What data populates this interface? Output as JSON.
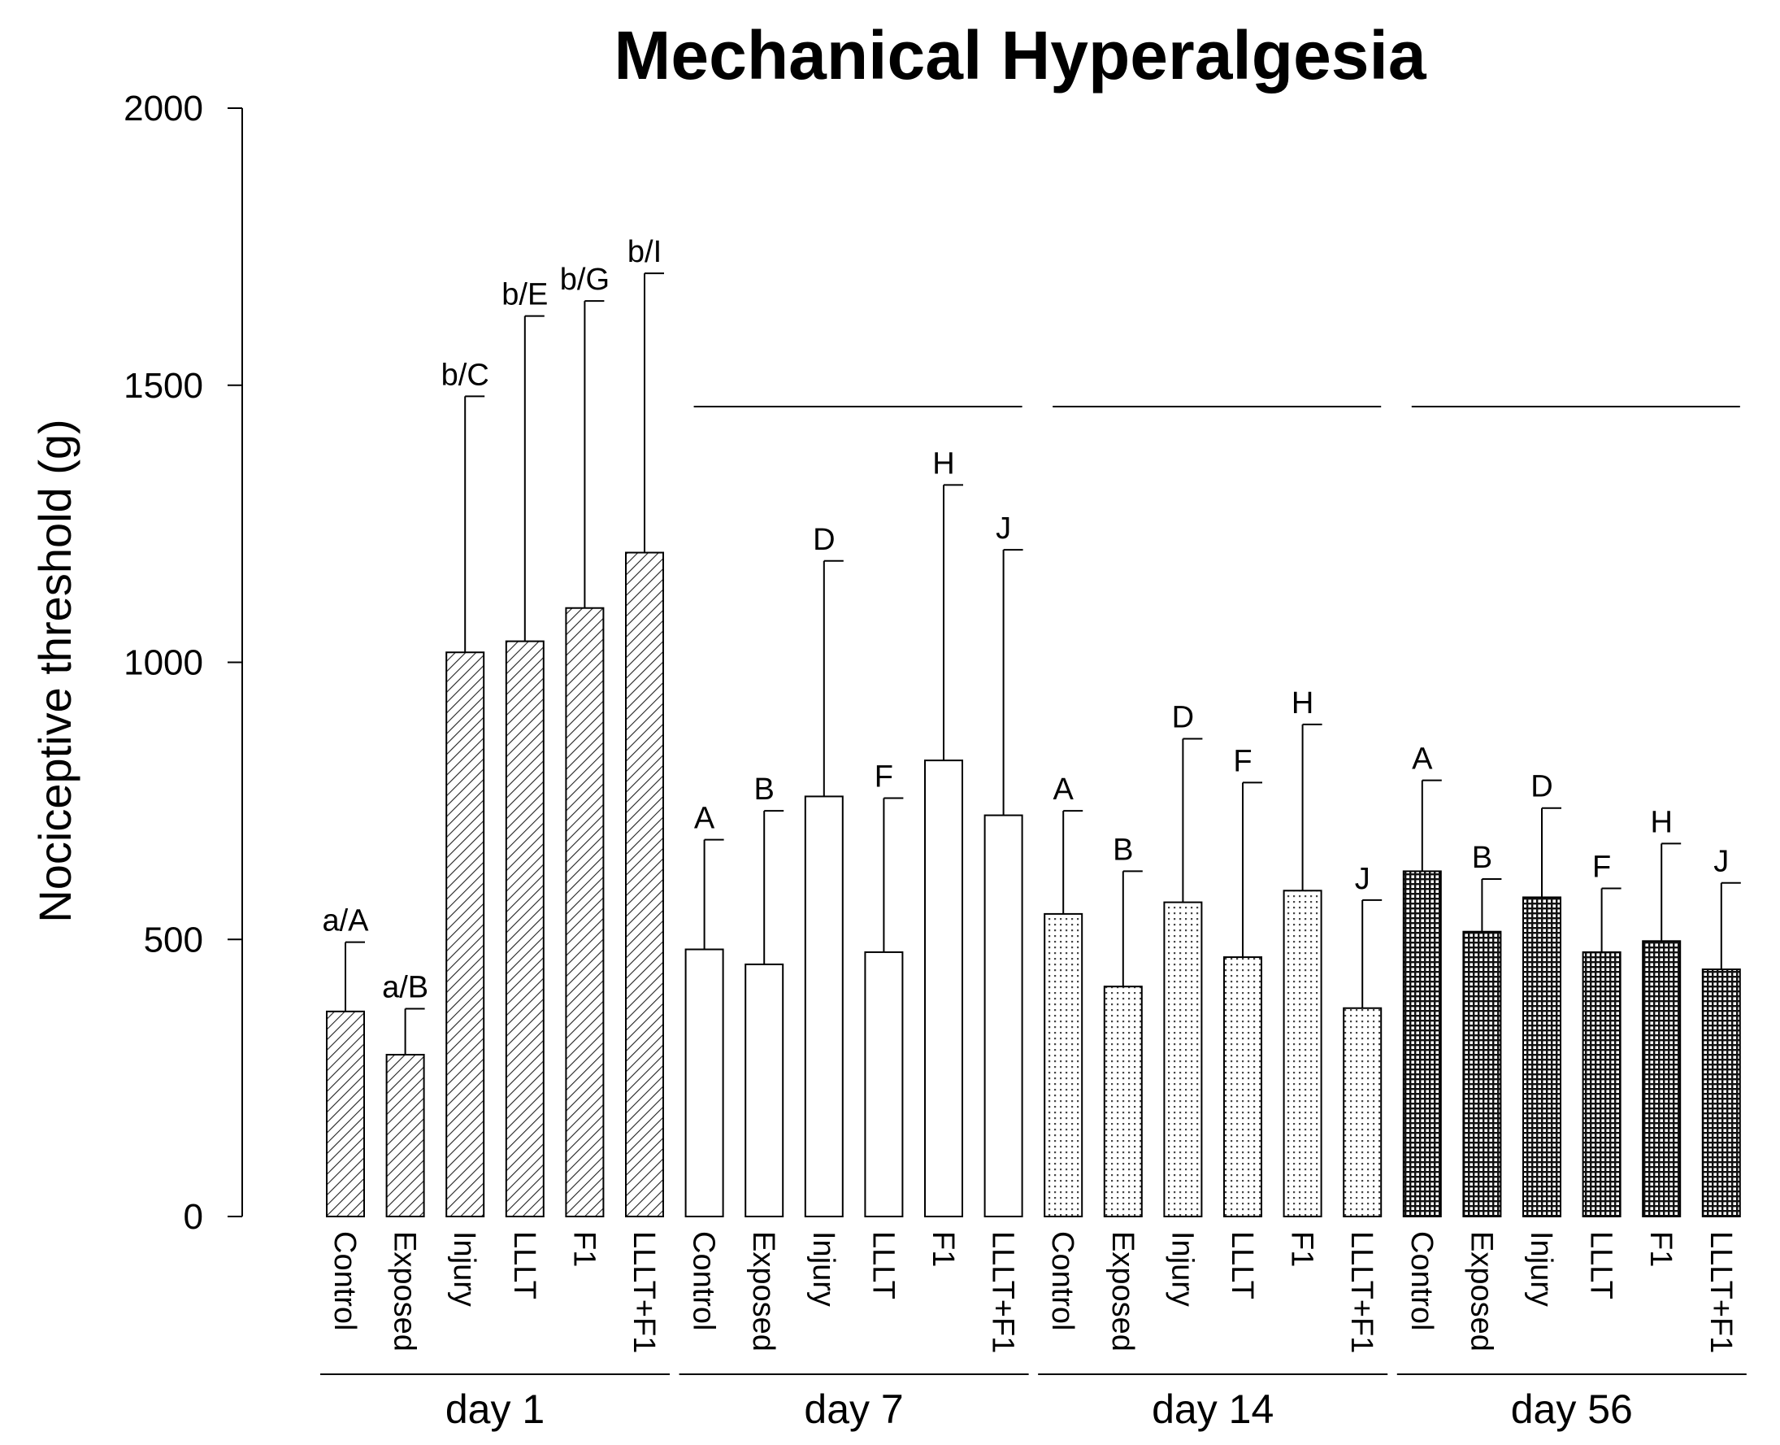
{
  "chart_data": {
    "type": "bar",
    "title": "Mechanical Hyperalgesia",
    "xlabel": "",
    "ylabel": "Nociceptive threshold (g)",
    "ylim": [
      0,
      2000
    ],
    "yticks": [
      0,
      500,
      1000,
      1500,
      2000
    ],
    "grid": false,
    "groups": [
      {
        "name": "day 1",
        "pattern": "hatch",
        "bars": [
          {
            "category": "Control",
            "value": 370,
            "error": 495,
            "label": "a/A"
          },
          {
            "category": "Exposed",
            "value": 292,
            "error": 375,
            "label": "a/B"
          },
          {
            "category": "Injury",
            "value": 1018,
            "error": 1480,
            "label": "b/C"
          },
          {
            "category": "LLLT",
            "value": 1038,
            "error": 1625,
            "label": "b/E"
          },
          {
            "category": "F1",
            "value": 1098,
            "error": 1652,
            "label": "b/G"
          },
          {
            "category": "LLLT+F1",
            "value": 1198,
            "error": 1702,
            "label": "b/I"
          }
        ]
      },
      {
        "name": "day 7",
        "pattern": "empty",
        "bars": [
          {
            "category": "Control",
            "value": 482,
            "error": 680,
            "label": "A"
          },
          {
            "category": "Exposed",
            "value": 455,
            "error": 732,
            "label": "B"
          },
          {
            "category": "Injury",
            "value": 758,
            "error": 1183,
            "label": "D"
          },
          {
            "category": "LLLT",
            "value": 477,
            "error": 755,
            "label": "F"
          },
          {
            "category": "F1",
            "value": 823,
            "error": 1320,
            "label": "H"
          },
          {
            "category": "LLLT+F1",
            "value": 724,
            "error": 1203,
            "label": "J"
          }
        ]
      },
      {
        "name": "day 14",
        "pattern": "dots",
        "bars": [
          {
            "category": "Control",
            "value": 546,
            "error": 732,
            "label": "A"
          },
          {
            "category": "Exposed",
            "value": 415,
            "error": 623,
            "label": "B"
          },
          {
            "category": "Injury",
            "value": 567,
            "error": 862,
            "label": "D"
          },
          {
            "category": "LLLT",
            "value": 468,
            "error": 783,
            "label": "F"
          },
          {
            "category": "F1",
            "value": 588,
            "error": 888,
            "label": "H"
          },
          {
            "category": "LLLT+F1",
            "value": 376,
            "error": 571,
            "label": "J"
          }
        ]
      },
      {
        "name": "day 56",
        "pattern": "grid",
        "bars": [
          {
            "category": "Control",
            "value": 623,
            "error": 787,
            "label": "A"
          },
          {
            "category": "Exposed",
            "value": 514,
            "error": 609,
            "label": "B"
          },
          {
            "category": "Injury",
            "value": 576,
            "error": 737,
            "label": "D"
          },
          {
            "category": "LLLT",
            "value": 477,
            "error": 592,
            "label": "F"
          },
          {
            "category": "F1",
            "value": 497,
            "error": 673,
            "label": "H"
          },
          {
            "category": "LLLT+F1",
            "value": 446,
            "error": 602,
            "label": "J"
          }
        ]
      }
    ],
    "annotations": [
      "day 7 line above groups",
      "day 14 line above groups",
      "day 56 line above groups"
    ]
  }
}
